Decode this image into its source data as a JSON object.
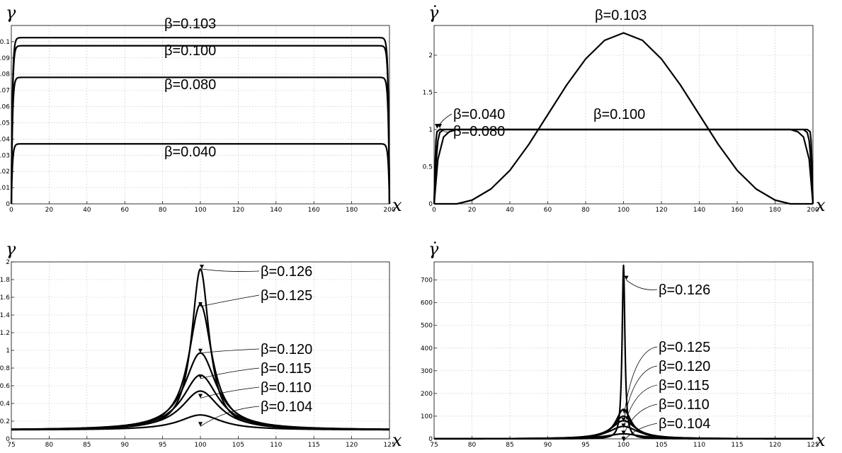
{
  "chart_data": [
    {
      "id": "p1",
      "type": "line",
      "ylabel": "γ",
      "xlabel": "x",
      "xlim": [
        0,
        200
      ],
      "ylim": [
        0,
        0.11
      ],
      "xticks": [
        0,
        20,
        40,
        60,
        80,
        100,
        120,
        140,
        160,
        180,
        200
      ],
      "yticks": [
        0,
        0.01,
        0.02,
        0.03,
        0.04,
        0.05,
        0.06,
        0.07,
        0.08,
        0.09,
        0.1
      ],
      "ytick_labels": [
        "0",
        "0.01",
        "0.02",
        "0.03",
        "0.04",
        "0.05",
        "0.06",
        "0.07",
        "0.08",
        "0.09",
        "0.1"
      ],
      "grid": true,
      "series": [
        {
          "name": "β=0.103",
          "plateau": 0.1025
        },
        {
          "name": "β=0.100",
          "plateau": 0.0975
        },
        {
          "name": "β=0.080",
          "plateau": 0.078
        },
        {
          "name": "β=0.040",
          "plateau": 0.037
        }
      ]
    },
    {
      "id": "p2",
      "type": "line",
      "ylabel": "γ̇",
      "xlabel": "x",
      "xlim": [
        0,
        200
      ],
      "ylim": [
        0,
        2.4
      ],
      "xticks": [
        0,
        20,
        40,
        60,
        80,
        100,
        120,
        140,
        160,
        180,
        200
      ],
      "yticks": [
        0,
        0.5,
        1,
        1.5,
        2
      ],
      "ytick_labels": [
        "0",
        "0.5",
        "1",
        "1.5",
        "2"
      ],
      "grid": true,
      "series": [
        {
          "name": "β=0.103",
          "x": [
            0,
            12,
            20,
            30,
            40,
            50,
            60,
            70,
            80,
            90,
            100,
            110,
            120,
            130,
            140,
            150,
            160,
            170,
            180,
            188,
            200
          ],
          "y": [
            0,
            0,
            0.05,
            0.2,
            0.45,
            0.8,
            1.2,
            1.6,
            1.95,
            2.2,
            2.3,
            2.2,
            1.95,
            1.6,
            1.2,
            0.8,
            0.45,
            0.2,
            0.05,
            0,
            0
          ]
        },
        {
          "name": "β=0.100",
          "x": [
            0,
            2,
            5,
            8,
            12,
            188,
            192,
            195,
            198,
            200
          ],
          "y": [
            0,
            0.6,
            0.9,
            0.97,
            1.0,
            1.0,
            0.97,
            0.9,
            0.6,
            0
          ]
        },
        {
          "name": "β=0.080",
          "x": [
            0,
            1,
            2,
            3,
            5,
            195,
            197,
            198,
            199,
            200
          ],
          "y": [
            0,
            0.55,
            0.85,
            0.96,
            1.0,
            1.0,
            0.96,
            0.85,
            0.55,
            0
          ]
        },
        {
          "name": "β=0.040",
          "x": [
            0,
            0.5,
            1,
            1.5,
            3,
            197,
            198.5,
            199,
            199.5,
            200
          ],
          "y": [
            0,
            0.5,
            0.85,
            0.97,
            1.0,
            1.0,
            0.97,
            0.85,
            0.5,
            0
          ]
        }
      ]
    },
    {
      "id": "p3",
      "type": "line",
      "ylabel": "γ",
      "xlabel": "x",
      "xlim": [
        75,
        125
      ],
      "ylim": [
        0,
        2
      ],
      "xticks": [
        75,
        80,
        85,
        90,
        95,
        100,
        105,
        110,
        115,
        120,
        125
      ],
      "yticks": [
        0,
        0.2,
        0.4,
        0.6,
        0.8,
        1,
        1.2,
        1.4,
        1.6,
        1.8,
        2
      ],
      "ytick_labels": [
        "0",
        "0.2",
        "0.4",
        "0.6",
        "0.8",
        "1",
        "1.2",
        "1.4",
        "1.6",
        "1.8",
        "2"
      ],
      "grid": true,
      "base": 0.1,
      "series": [
        {
          "name": "β=0.126",
          "peak": 1.92
        },
        {
          "name": "β=0.125",
          "peak": 1.52
        },
        {
          "name": "β=0.120",
          "peak": 0.97
        },
        {
          "name": "β=0.115",
          "peak": 0.72
        },
        {
          "name": "β=0.110",
          "peak": 0.54
        },
        {
          "name": "β=0.104",
          "peak": 0.27
        }
      ]
    },
    {
      "id": "p4",
      "type": "line",
      "ylabel": "γ̇",
      "xlabel": "x",
      "xlim": [
        75,
        125
      ],
      "ylim": [
        0,
        780
      ],
      "xticks": [
        75,
        80,
        85,
        90,
        95,
        100,
        105,
        110,
        115,
        120,
        125
      ],
      "yticks": [
        0,
        100,
        200,
        300,
        400,
        500,
        600,
        700
      ],
      "ytick_labels": [
        "0",
        "100",
        "200",
        "300",
        "400",
        "500",
        "600",
        "700"
      ],
      "grid": true,
      "series": [
        {
          "name": "β=0.126",
          "peak": 765
        },
        {
          "name": "β=0.125",
          "peak": 130
        },
        {
          "name": "β=0.120",
          "peak": 100
        },
        {
          "name": "β=0.115",
          "peak": 80
        },
        {
          "name": "β=0.110",
          "peak": 55
        },
        {
          "name": "β=0.104",
          "peak": 22
        }
      ]
    }
  ]
}
